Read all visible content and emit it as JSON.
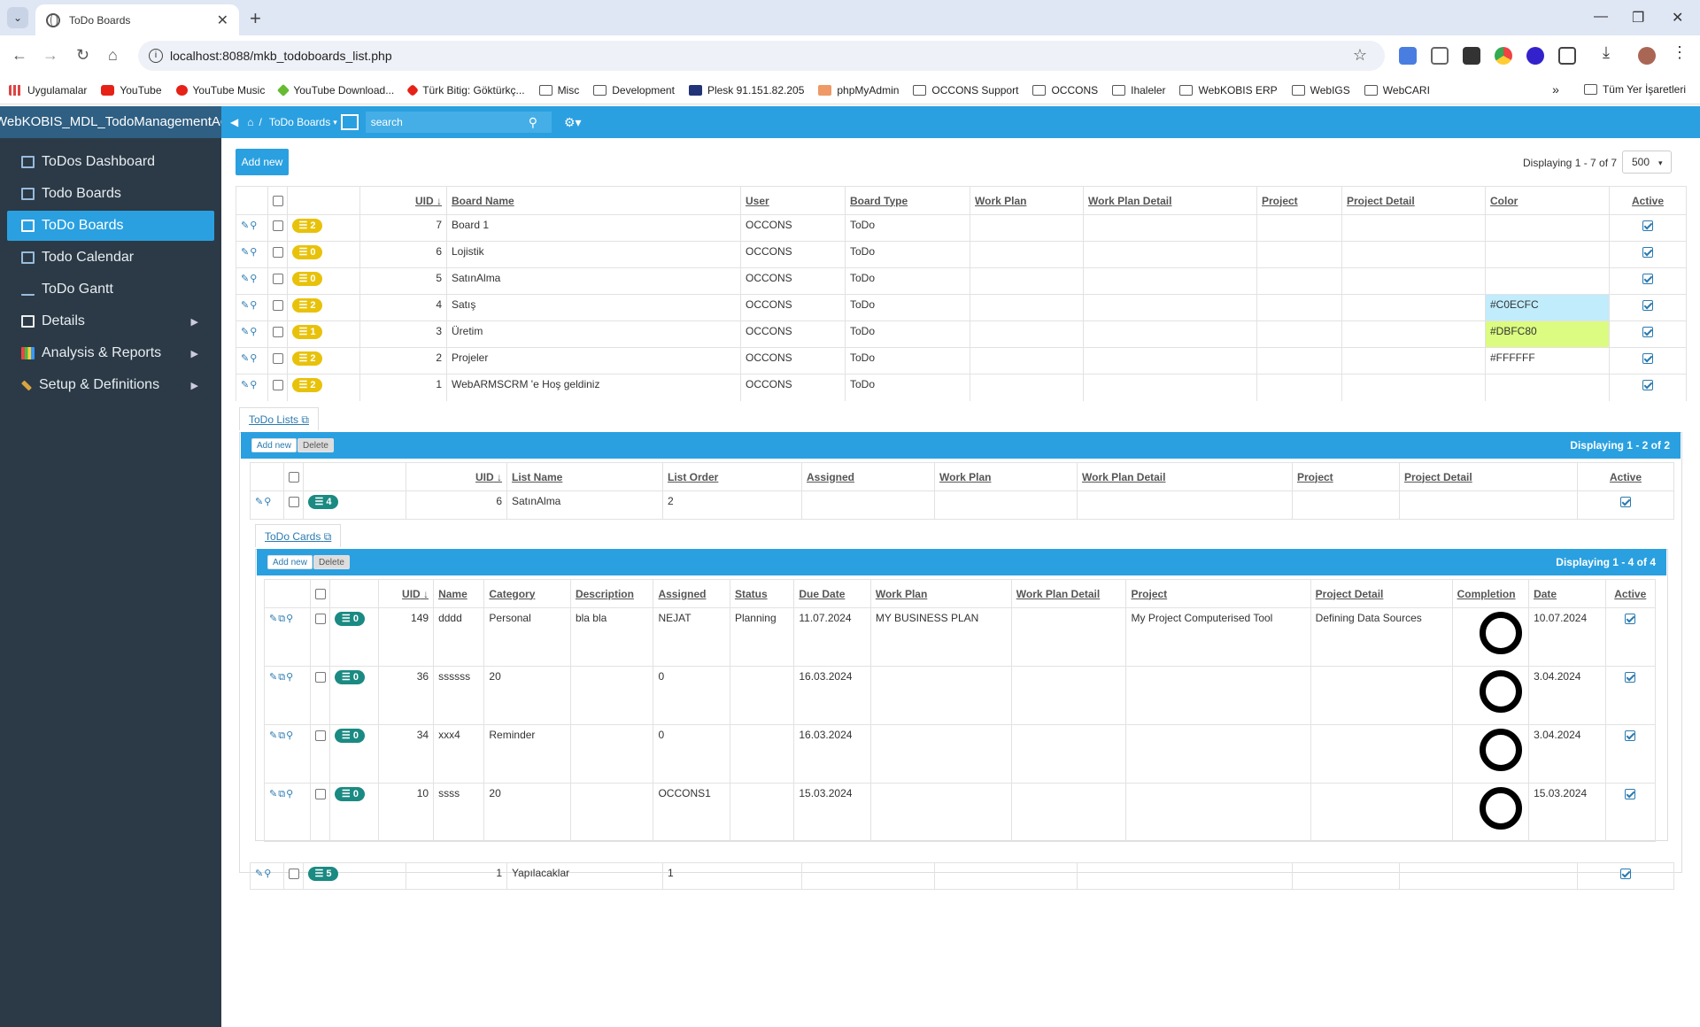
{
  "browser": {
    "tab_title": "ToDo Boards",
    "url": "localhost:8088/mkb_todoboards_list.php",
    "bookmarks": [
      {
        "label": "Uygulamalar",
        "icon": "apps-grid-icon"
      },
      {
        "label": "YouTube",
        "icon": "youtube-icon"
      },
      {
        "label": "YouTube Music",
        "icon": "youtube-music-icon"
      },
      {
        "label": "YouTube Download...",
        "icon": "download-green-icon"
      },
      {
        "label": "Türk Bitig: Göktürkç...",
        "icon": "bitig-icon"
      },
      {
        "label": "Misc",
        "icon": "folder-icon"
      },
      {
        "label": "Development",
        "icon": "folder-icon"
      },
      {
        "label": "Plesk 91.151.82.205",
        "icon": "plesk-icon"
      },
      {
        "label": "phpMyAdmin",
        "icon": "phpmyadmin-icon"
      },
      {
        "label": "OCCONS Support",
        "icon": "folder-icon"
      },
      {
        "label": "OCCONS",
        "icon": "folder-icon"
      },
      {
        "label": "Ihaleler",
        "icon": "folder-icon"
      },
      {
        "label": "WebKOBIS ERP",
        "icon": "folder-icon"
      },
      {
        "label": "WebIGS",
        "icon": "folder-icon"
      },
      {
        "label": "WebCARI",
        "icon": "folder-icon"
      }
    ],
    "bookmarks_overflow": "»",
    "all_bookmarks": "Tüm Yer İşaretleri"
  },
  "app": {
    "brand": "WebKOBIS_MDL_TodoManagementAc",
    "breadcrumb_current": "ToDo Boards",
    "search_placeholder": "search"
  },
  "sidebar": {
    "items": [
      {
        "label": "ToDos Dashboard",
        "active": false,
        "submenu": false
      },
      {
        "label": "Todo Boards",
        "active": false,
        "submenu": false
      },
      {
        "label": "ToDo Boards",
        "active": true,
        "submenu": false
      },
      {
        "label": "Todo Calendar",
        "active": false,
        "submenu": false
      },
      {
        "label": "ToDo Gantt",
        "active": false,
        "submenu": false
      },
      {
        "label": "Details",
        "active": false,
        "submenu": true
      },
      {
        "label": "Analysis & Reports",
        "active": false,
        "submenu": true
      },
      {
        "label": "Setup & Definitions",
        "active": false,
        "submenu": true
      }
    ]
  },
  "boards": {
    "add_new": "Add new",
    "displaying": "Displaying 1 - 7 of 7",
    "page_size": "500",
    "columns": [
      "UID",
      "Board Name",
      "User",
      "Board Type",
      "Work Plan",
      "Work Plan Detail",
      "Project",
      "Project Detail",
      "Color",
      "Active"
    ],
    "rows": [
      {
        "badge": "2",
        "uid": "7",
        "name": "Board 1",
        "user": "OCCONS",
        "type": "ToDo",
        "color": "",
        "color_bg": "",
        "active": true
      },
      {
        "badge": "0",
        "uid": "6",
        "name": "Lojistik",
        "user": "OCCONS",
        "type": "ToDo",
        "color": "",
        "color_bg": "",
        "active": true
      },
      {
        "badge": "0",
        "uid": "5",
        "name": "SatınAlma",
        "user": "OCCONS",
        "type": "ToDo",
        "color": "",
        "color_bg": "",
        "active": true
      },
      {
        "badge": "2",
        "uid": "4",
        "name": "Satış",
        "user": "OCCONS",
        "type": "ToDo",
        "color": "#C0ECFC",
        "color_bg": "#C0ECFC",
        "active": true
      },
      {
        "badge": "1",
        "uid": "3",
        "name": "Üretim",
        "user": "OCCONS",
        "type": "ToDo",
        "color": "#DBFC80",
        "color_bg": "#DBFC80",
        "active": true
      },
      {
        "badge": "2",
        "uid": "2",
        "name": "Projeler",
        "user": "OCCONS",
        "type": "ToDo",
        "color": "#FFFFFF",
        "color_bg": "#FFFFFF",
        "active": true
      },
      {
        "badge": "2",
        "uid": "1",
        "name": "WebARMSCRM 'e Hoş geldiniz",
        "user": "OCCONS",
        "type": "ToDo",
        "color": "",
        "color_bg": "",
        "active": true
      }
    ]
  },
  "lists": {
    "tab": "ToDo Lists",
    "add_new": "Add new",
    "delete": "Delete",
    "displaying": "Displaying 1 - 2 of 2",
    "columns": [
      "UID",
      "List Name",
      "List Order",
      "Assigned",
      "Work Plan",
      "Work Plan Detail",
      "Project",
      "Project Detail",
      "Active"
    ],
    "rows": [
      {
        "badge": "4",
        "uid": "6",
        "name": "SatınAlma",
        "order": "2",
        "active": true
      },
      {
        "badge": "5",
        "uid": "1",
        "name": "Yapılacaklar",
        "order": "1",
        "active": true
      }
    ]
  },
  "cards": {
    "tab": "ToDo Cards",
    "add_new": "Add new",
    "delete": "Delete",
    "displaying": "Displaying 1 - 4 of 4",
    "columns": [
      "UID",
      "Name",
      "Category",
      "Description",
      "Assigned",
      "Status",
      "Due Date",
      "Work Plan",
      "Work Plan Detail",
      "Project",
      "Project Detail",
      "Completion",
      "Date",
      "Active"
    ],
    "rows": [
      {
        "badge": "0",
        "uid": "149",
        "name": "dddd",
        "category": "Personal",
        "description": "bla bla",
        "assigned": "NEJAT",
        "status": "Planning",
        "due": "11.07.2024",
        "work_plan": "MY BUSINESS PLAN",
        "wpd": "",
        "project": "My Project Computerised Tool",
        "project_detail": "Defining Data Sources",
        "date": "10.07.2024",
        "active": true
      },
      {
        "badge": "0",
        "uid": "36",
        "name": "ssssss",
        "category": "20",
        "description": "",
        "assigned": "0",
        "status": "",
        "due": "16.03.2024",
        "work_plan": "",
        "wpd": "",
        "project": "",
        "project_detail": "",
        "date": "3.04.2024",
        "active": true
      },
      {
        "badge": "0",
        "uid": "34",
        "name": "xxx4",
        "category": "Reminder",
        "description": "",
        "assigned": "0",
        "status": "",
        "due": "16.03.2024",
        "work_plan": "",
        "wpd": "",
        "project": "",
        "project_detail": "",
        "date": "3.04.2024",
        "active": true
      },
      {
        "badge": "0",
        "uid": "10",
        "name": "ssss",
        "category": "20",
        "description": "",
        "assigned": "OCCONS1",
        "status": "",
        "due": "15.03.2024",
        "work_plan": "",
        "wpd": "",
        "project": "",
        "project_detail": "",
        "date": "15.03.2024",
        "active": true
      }
    ]
  }
}
